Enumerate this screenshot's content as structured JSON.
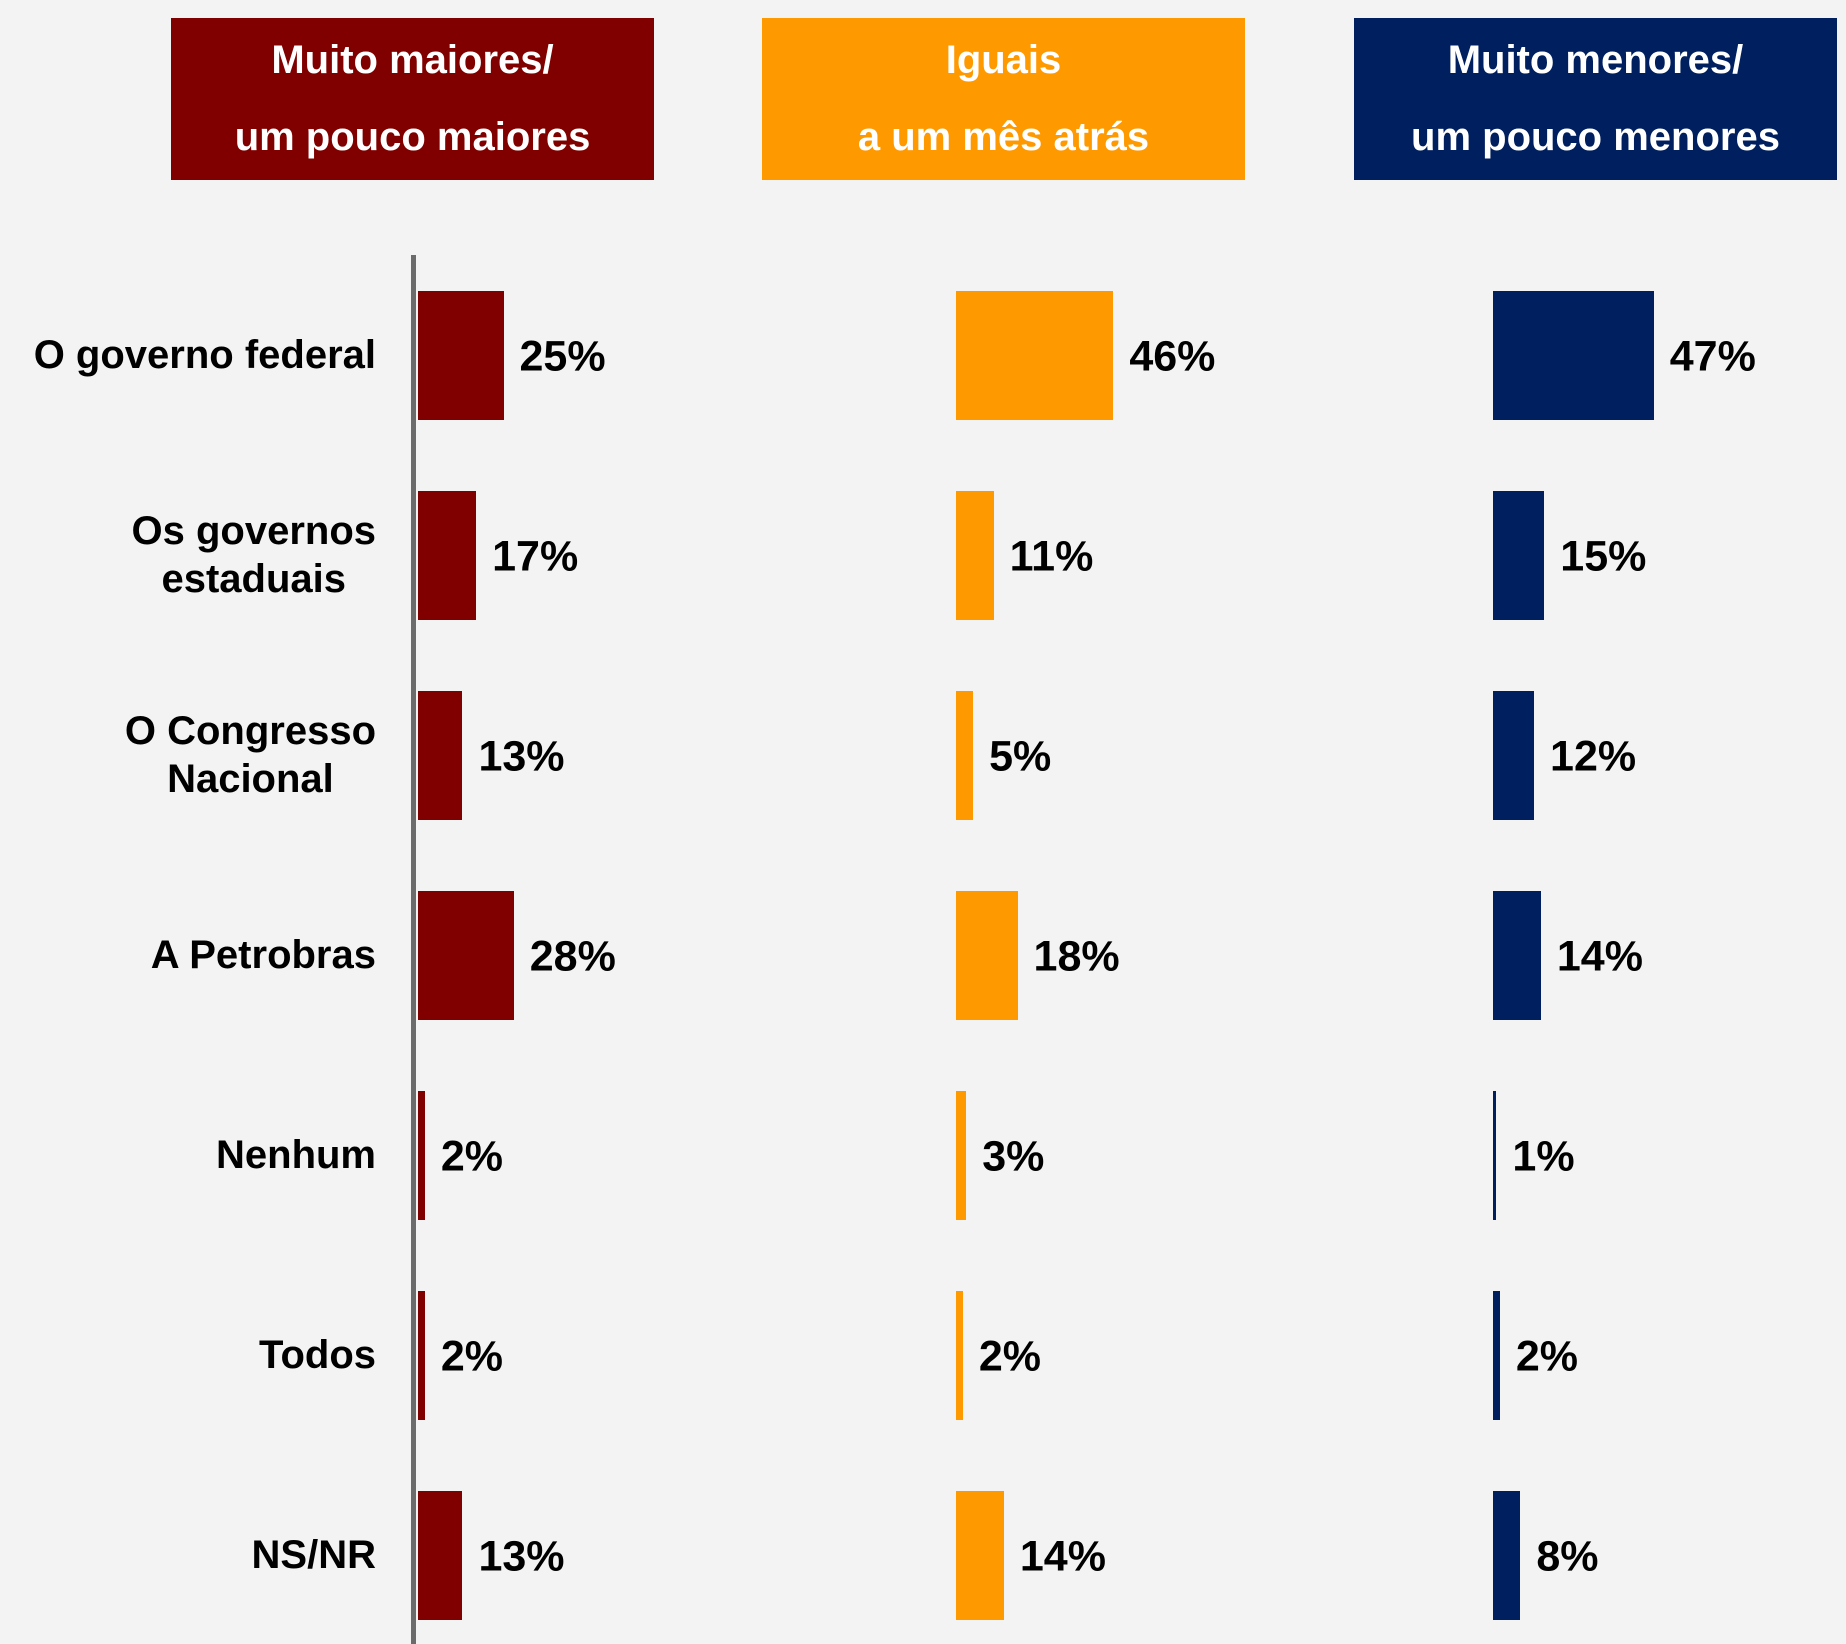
{
  "chart_data": {
    "type": "bar",
    "orientation": "horizontal",
    "categories": [
      "O governo federal",
      "Os governos\nestaduais",
      "O Congresso\nNacional",
      "A Petrobras",
      "Nenhum",
      "Todos",
      "NS/NR"
    ],
    "series": [
      {
        "name": "Muito maiores/\num pouco maiores",
        "color": "#800000",
        "values": [
          25,
          17,
          13,
          28,
          2,
          2,
          13
        ],
        "value_labels": [
          "25%",
          "17%",
          "13%",
          "28%",
          "2%",
          "2%",
          "13%"
        ]
      },
      {
        "name": "Iguais\na um mês atrás",
        "color": "#ff9900",
        "values": [
          46,
          11,
          5,
          18,
          3,
          2,
          14
        ],
        "value_labels": [
          "46%",
          "11%",
          "5%",
          "18%",
          "3%",
          "2%",
          "14%"
        ]
      },
      {
        "name": "Muito menores/\num pouco menores",
        "color": "#001f5f",
        "values": [
          47,
          15,
          12,
          14,
          1,
          2,
          8
        ],
        "value_labels": [
          "47%",
          "15%",
          "12%",
          "14%",
          "1%",
          "2%",
          "8%"
        ]
      }
    ]
  }
}
